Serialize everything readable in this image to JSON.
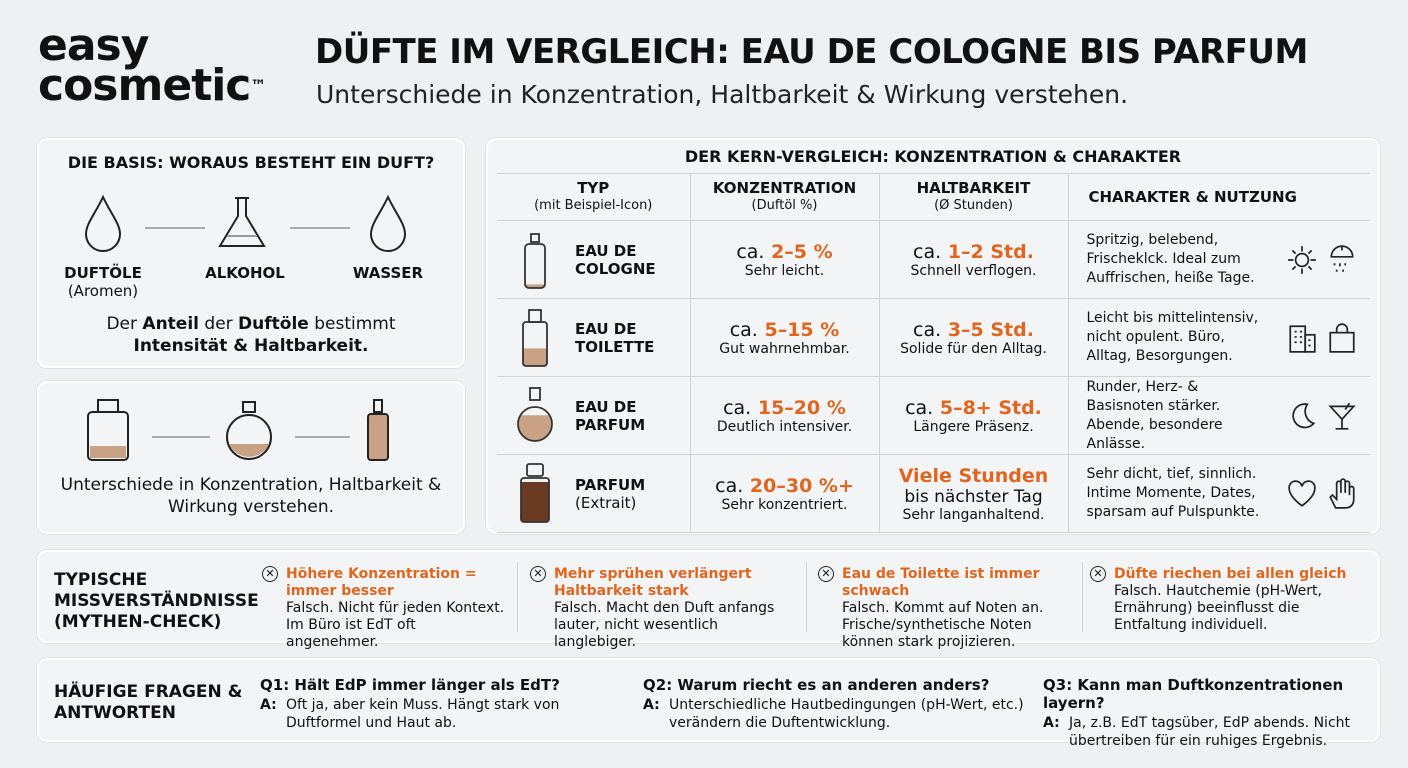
{
  "brand": {
    "line1": "easy",
    "line2": "cosmetic",
    "tm": "™"
  },
  "header": {
    "title": "DÜFTE IM VERGLEICH: EAU DE COLOGNE BIS PARFUM",
    "subtitle": "Unterschiede in Konzentration, Haltbarkeit & Wirkung verstehen."
  },
  "basis": {
    "title": "DIE BASIS: WORAUS BESTEHT EIN DUFT?",
    "items": [
      {
        "label": "DUFTÖLE",
        "sub": "(Aromen)"
      },
      {
        "label": "ALKOHOL"
      },
      {
        "label": "WASSER"
      }
    ],
    "text_pre": "Der ",
    "text_b1": "Anteil",
    "text_mid": " der ",
    "text_b2": "Duftöle",
    "text_post": " bestimmt",
    "text_b3": "Intensität & Haltbarkeit."
  },
  "bottles_caption": "Unterschiede in Konzentration, Haltbarkeit & Wirkung verstehen.",
  "table": {
    "title": "DER KERN-VERGLEICH: KONZENTRATION & CHARAKTER",
    "headers": [
      {
        "main": "TYP",
        "sub": "(mit Beispiel-Icon)"
      },
      {
        "main": "KONZENTRATION",
        "sub": "(Duftöl %)"
      },
      {
        "main": "HALTBARKEIT",
        "sub": "(Ø Stunden)"
      },
      {
        "main": "CHARAKTER & NUTZUNG",
        "sub": ""
      }
    ],
    "rows": [
      {
        "type": "EAU DE COLOGNE",
        "type_sub": "",
        "conc_pre": "ca.",
        "conc": "2–5 %",
        "conc_note": "Sehr leicht.",
        "dur_pre": "ca.",
        "dur": "1–2 Std.",
        "dur_note": "Schnell verflogen.",
        "char": "Spritzig, belebend, Frischeklck. Ideal zum Auffrischen, heiße Tage.",
        "icons": [
          "sun-icon",
          "shower-icon"
        ],
        "fill": 0.1
      },
      {
        "type": "EAU DE TOILETTE",
        "type_sub": "",
        "conc_pre": "ca.",
        "conc": "5–15 %",
        "conc_note": "Gut wahrnehmbar.",
        "dur_pre": "ca.",
        "dur": "3–5 Std.",
        "dur_note": "Solide für den Alltag.",
        "char": "Leicht bis mittelintensiv, nicht opulent. Büro, Alltag, Besorgungen.",
        "icons": [
          "office-building-icon",
          "shopping-bag-icon"
        ],
        "fill": 0.35
      },
      {
        "type": "EAU DE PARFUM",
        "type_sub": "",
        "conc_pre": "ca.",
        "conc": "15–20 %",
        "conc_note": "Deutlich intensiver.",
        "dur_pre": "ca.",
        "dur": "5–8+ Std.",
        "dur_note": "Längere Präsenz.",
        "char": "Runder, Herz- & Basisnoten stärker. Abende, besondere Anlässe.",
        "icons": [
          "moon-icon",
          "cocktail-icon"
        ],
        "fill": 0.55
      },
      {
        "type": "PARFUM",
        "type_sub": "(Extrait)",
        "conc_pre": "ca.",
        "conc": "20–30 %+",
        "conc_note": "Sehr konzentriert.",
        "dur_pre": "",
        "dur": "Viele Stunden",
        "dur_extra": "bis nächster Tag",
        "dur_note": "Sehr langanhaltend.",
        "char": "Sehr dicht, tief, sinnlich. Intime Momente, Dates, sparsam auf Pulspunkte.",
        "icons": [
          "heart-icon",
          "hand-icon"
        ],
        "fill": 0.75
      }
    ]
  },
  "myths": {
    "title": "TYPISCHE MISSVERSTÄNDNISSE (MYTHEN-CHECK)",
    "items": [
      {
        "claim": "Höhere Konzentration = immer besser",
        "answer": "Falsch. Nicht für jeden Kontext. Im Büro ist EdT oft angenehmer."
      },
      {
        "claim": "Mehr sprühen verlängert Haltbarkeit stark",
        "answer": "Falsch. Macht den Duft anfangs lauter, nicht wesentlich langlebiger."
      },
      {
        "claim": "Eau de Toilette ist immer schwach",
        "answer": "Falsch. Kommt auf Noten an. Frische/synthetische Noten können stark projizieren."
      },
      {
        "claim": "Düfte riechen bei allen gleich",
        "answer": "Falsch. Hautchemie (pH-Wert, Ernährung) beeinflusst die Entfaltung individuell."
      }
    ]
  },
  "faq": {
    "title": "HÄUFIGE FRAGEN & ANTWORTEN",
    "a_label": "A:",
    "items": [
      {
        "q": "Q1: Hält EdP immer länger als EdT?",
        "a": "Oft ja, aber kein Muss. Hängt stark von Duftformel und Haut ab."
      },
      {
        "q": "Q2: Warum riecht es an anderen anders?",
        "a": "Unterschiedliche Hautbedingungen (pH-Wert, etc.) verändern die Duftentwicklung."
      },
      {
        "q": "Q3: Kann man Duftkonzentrationen layern?",
        "a": "Ja, z.B. EdT tagsüber, EdP abends. Nicht übertreiben für ein ruhiges Ergebnis."
      }
    ]
  },
  "colors": {
    "accent": "#e0661f",
    "background": "#eef0f1",
    "liquid": "#c9a184",
    "parfum_liquid": "#6b3a22"
  }
}
